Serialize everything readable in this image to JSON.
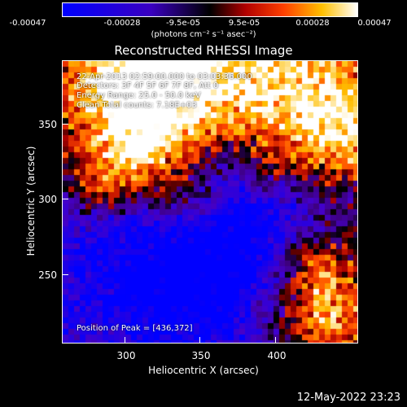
{
  "colorbar": {
    "ticks": [
      "-0.00047",
      "-0.00028",
      "-9.5e-05",
      "9.5e-05",
      "0.00028",
      "0.00047"
    ],
    "units": "(photons cm⁻² s⁻¹ asec⁻²)"
  },
  "title": "Reconstructed RHESSI Image",
  "info": {
    "time": "22-Apr-2013 02:59:00.000 to 03:03:36.000",
    "detectors": "Detectors: 3F 4F 5F 6F 7F 8F, Att 0",
    "energy": "Energy Range: 25.0 - 50.0 keV",
    "clean": "Clean     Total counts: 7.18E+03",
    "peak": "Position of Peak = [436,372]"
  },
  "axes": {
    "xlabel": "Heliocentric X (arcsec)",
    "ylabel": "Heliocentric Y (arcsec)",
    "xticks": [
      "300",
      "350",
      "400"
    ],
    "yticks": [
      "350",
      "300",
      "250"
    ]
  },
  "footer": "12-May-2022 23:23",
  "chart_data": {
    "type": "heatmap",
    "title": "Reconstructed RHESSI Image",
    "xlabel": "Heliocentric X (arcsec)",
    "ylabel": "Heliocentric Y (arcsec)",
    "xlim": [
      261,
      446
    ],
    "ylim": [
      200,
      385
    ],
    "xticks": [
      300,
      350,
      400
    ],
    "yticks": [
      250,
      300,
      350
    ],
    "colorbar_range": [
      -0.00047,
      0.00047
    ],
    "colormap": "blue-purple-red-yellow-white",
    "peak": [
      436,
      372
    ]
  }
}
